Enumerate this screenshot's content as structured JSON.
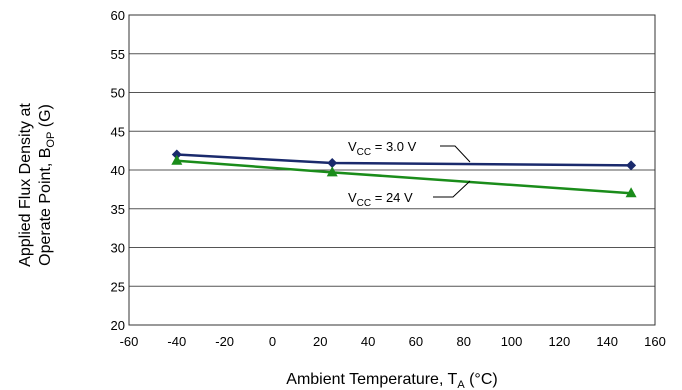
{
  "chart_data": {
    "type": "line",
    "xlabel": {
      "main": "Ambient Temperature, T",
      "sub": "A",
      "tail": " (°C)"
    },
    "ylabel": {
      "line1": "Applied Flux Density at",
      "line2_main": "Operate Point, B",
      "line2_sub": "OP",
      "line2_tail": " (G)"
    },
    "xlim": [
      -60,
      160
    ],
    "ylim": [
      20,
      60
    ],
    "x_ticks": [
      -60,
      -40,
      -20,
      0,
      20,
      40,
      60,
      80,
      100,
      120,
      140,
      160
    ],
    "y_ticks": [
      20,
      25,
      30,
      35,
      40,
      45,
      50,
      55,
      60
    ],
    "grid": {
      "horizontal": true,
      "vertical": false
    },
    "series": [
      {
        "name": "V_CC = 3.0 V",
        "color": "#1a2a6c",
        "marker": "diamond",
        "points": [
          {
            "x": -40,
            "y": 42.0
          },
          {
            "x": 25,
            "y": 40.9
          },
          {
            "x": 150,
            "y": 40.6
          }
        ]
      },
      {
        "name": "V_CC = 24 V",
        "color": "#1a8c1a",
        "marker": "triangle",
        "points": [
          {
            "x": -40,
            "y": 41.2
          },
          {
            "x": 25,
            "y": 39.7
          },
          {
            "x": 150,
            "y": 37.0
          }
        ]
      }
    ],
    "annotations": [
      {
        "series": 0,
        "main": "V",
        "sub": "CC",
        "tail": " = 3.0 V"
      },
      {
        "series": 1,
        "main": "V",
        "sub": "CC",
        "tail": " = 24 V"
      }
    ]
  }
}
